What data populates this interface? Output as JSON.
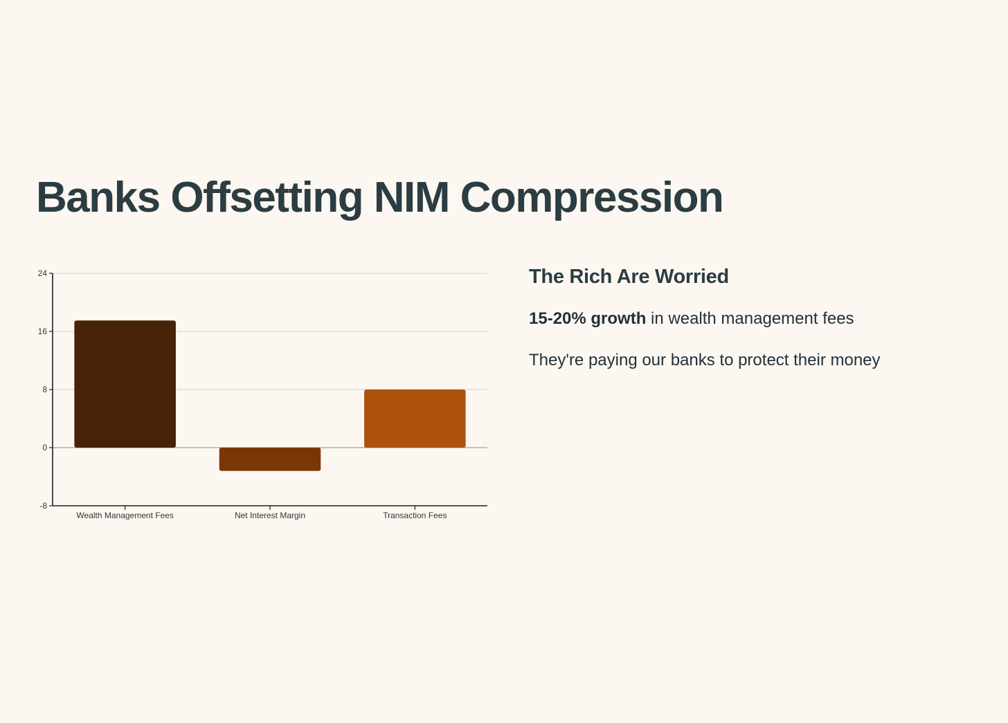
{
  "title": "Banks Offsetting NIM Compression",
  "side": {
    "heading": "The Rich Are Worried",
    "line1_bold": "15-20% growth",
    "line1_rest": " in wealth management fees",
    "line2": "They're paying our banks to protect their money"
  },
  "chart_data": {
    "type": "bar",
    "title": "",
    "xlabel": "",
    "ylabel": "",
    "categories": [
      "Wealth Management Fees",
      "Net Interest Margin",
      "Transaction Fees"
    ],
    "values": [
      17.5,
      -3.2,
      8
    ],
    "colors": [
      "#472206",
      "#7b3608",
      "#ad520e"
    ],
    "ylim": [
      -8,
      24
    ],
    "yticks": [
      -8,
      0,
      8,
      16,
      24
    ],
    "grid": true,
    "legend": "none"
  }
}
